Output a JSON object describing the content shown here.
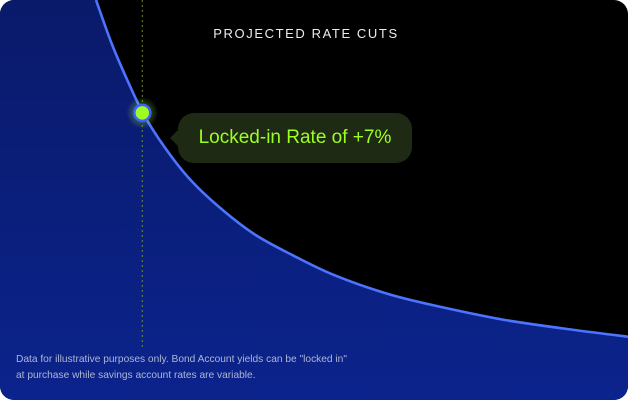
{
  "card": {
    "title": "PROJECTED RATE CUTS",
    "callout_label": "Locked-in Rate of +7%",
    "disclaimer": [
      "Data for illustrative purposes only. Bond Account yields can be \"locked in\"",
      "at purchase while savings account rates are variable."
    ]
  },
  "colors": {
    "background": "#000000",
    "area_fill": "#0a1e78",
    "curve": "#4d74ff",
    "marker": "#9cff21",
    "guide": "#6f8f2a",
    "callout_bg": "#1f2a14"
  },
  "chart_data": {
    "type": "area",
    "title": "PROJECTED RATE CUTS",
    "xlabel": "",
    "ylabel": "",
    "grid": false,
    "legend": "none",
    "ylim": [
      0,
      1
    ],
    "series": [
      {
        "x": [
          0,
          0.03,
          0.06,
          0.09,
          0.13,
          0.18,
          0.24,
          0.3,
          0.37,
          0.45,
          0.55,
          0.65,
          0.77,
          0.9,
          1.0
        ],
        "values": [
          1.0,
          0.88,
          0.78,
          0.69,
          0.6,
          0.51,
          0.43,
          0.365,
          0.31,
          0.255,
          0.205,
          0.17,
          0.135,
          0.108,
          0.09
        ]
      }
    ],
    "marker": {
      "x": 0.087,
      "y": 0.695,
      "label": "Locked-in Rate of +7%"
    }
  }
}
